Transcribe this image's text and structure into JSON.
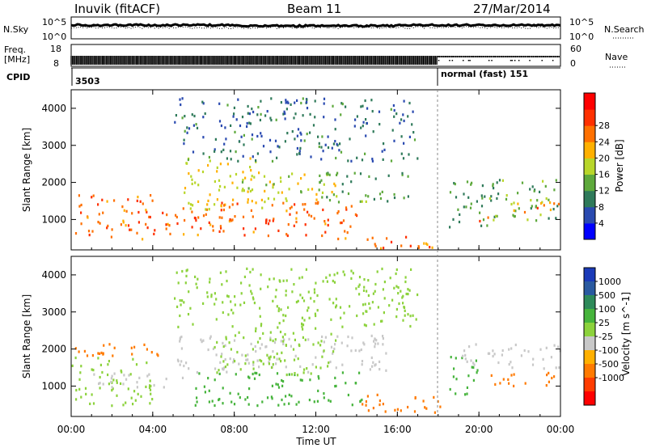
{
  "chart_data": {
    "type": "heatmap",
    "header": {
      "station": "Inuvik (fitACF)",
      "beam": "Beam 11",
      "date": "27/Mar/2014"
    },
    "nsky_panel": {
      "left_label": "N.Sky",
      "right_label": "N.Search",
      "left_ticks": [
        "10^5",
        "10^0"
      ],
      "right_ticks": [
        "10^5",
        "10^0"
      ]
    },
    "freq_panel": {
      "left_label_line1": "Freq.",
      "left_label_line2": "[MHz]",
      "left_ticks": [
        "18",
        "8"
      ],
      "right_label": "Nave",
      "right_ticks": [
        "60",
        "0"
      ]
    },
    "cpid": {
      "label": "CPID",
      "entries": [
        {
          "text": "3503",
          "start_hour": 0
        },
        {
          "text": "normal (fast) 151",
          "start_hour": 18
        }
      ]
    },
    "x_axis": {
      "label": "Time UT",
      "range_hours": [
        0,
        24
      ],
      "ticks": [
        {
          "hour": 0,
          "label": "00:00"
        },
        {
          "hour": 4,
          "label": "04:00"
        },
        {
          "hour": 8,
          "label": "08:00"
        },
        {
          "hour": 12,
          "label": "12:00"
        },
        {
          "hour": 16,
          "label": "16:00"
        },
        {
          "hour": 20,
          "label": "20:00"
        },
        {
          "hour": 24,
          "label": "00:00"
        }
      ]
    },
    "power_panel": {
      "ylabel": "Slant Range [km]",
      "yrange_km": [
        180,
        4500
      ],
      "yticks": [
        1000,
        2000,
        3000,
        4000
      ],
      "colorbar_label": "Power [dB]",
      "colorbar_ticks": [
        "4",
        "8",
        "12",
        "16",
        "20",
        "24",
        "28"
      ],
      "colorbar_colors": [
        "#0000ff",
        "#2a4ab0",
        "#2f7a5a",
        "#5ea93c",
        "#b8d62a",
        "#ffb000",
        "#ff7000",
        "#ff3000",
        "#ff0000"
      ]
    },
    "velocity_panel": {
      "ylabel": "Slant Range [km]",
      "yrange_km": [
        180,
        4500
      ],
      "yticks": [
        1000,
        2000,
        3000,
        4000
      ],
      "colorbar_label": "Velocity [m s^-1]",
      "colorbar_ticks": [
        "1000",
        "500",
        "100",
        "25",
        "-25",
        "-100",
        "-500",
        "-1000"
      ],
      "colorbar_colors": [
        "#1a3ab8",
        "#2a5aa0",
        "#2e8a5a",
        "#46b43c",
        "#8cd23c",
        "#c8c8c8",
        "#ffb000",
        "#ff7a00",
        "#ff3c00",
        "#ff0000"
      ]
    },
    "power_blobs": [
      {
        "t0": 0.0,
        "t1": 4.0,
        "r0": 500,
        "r1": 1700,
        "val": 26
      },
      {
        "t0": 4.0,
        "t1": 8.0,
        "r0": 600,
        "r1": 1400,
        "val": 27
      },
      {
        "t0": 5.5,
        "t1": 9.5,
        "r0": 1300,
        "r1": 2700,
        "val": 20
      },
      {
        "t0": 7.0,
        "t1": 14.0,
        "r0": 500,
        "r1": 1500,
        "val": 27
      },
      {
        "t0": 8.0,
        "t1": 13.0,
        "r0": 1500,
        "r1": 2300,
        "val": 18
      },
      {
        "t0": 12.0,
        "t1": 16.5,
        "r0": 1500,
        "r1": 2300,
        "val": 13
      },
      {
        "t0": 14.0,
        "t1": 18.0,
        "r0": 250,
        "r1": 650,
        "val": 26
      },
      {
        "t0": 18.5,
        "t1": 21.0,
        "r0": 800,
        "r1": 2100,
        "val": 12
      },
      {
        "t0": 19.5,
        "t1": 20.5,
        "r0": 900,
        "r1": 1100,
        "val": 27
      },
      {
        "t0": 20.5,
        "t1": 24.0,
        "r0": 1000,
        "r1": 2100,
        "val": 14
      },
      {
        "t0": 21.0,
        "t1": 24.0,
        "r0": 1200,
        "r1": 1500,
        "val": 26
      },
      {
        "t0": 5.0,
        "t1": 17.0,
        "r0": 2600,
        "r1": 4300,
        "val": 9
      }
    ],
    "velocity_blobs": [
      {
        "t0": 0.0,
        "t1": 4.0,
        "r0": 500,
        "r1": 1800,
        "val": 60
      },
      {
        "t0": 1.0,
        "t1": 6.0,
        "r0": 1000,
        "r1": 1400,
        "val": 0
      },
      {
        "t0": 5.0,
        "t1": 15.5,
        "r0": 1400,
        "r1": 2400,
        "val": 0
      },
      {
        "t0": 6.0,
        "t1": 14.5,
        "r0": 500,
        "r1": 1400,
        "val": 250
      },
      {
        "t0": 7.0,
        "t1": 13.0,
        "r0": 1300,
        "r1": 2600,
        "val": 60
      },
      {
        "t0": 14.0,
        "t1": 18.5,
        "r0": 300,
        "r1": 800,
        "val": -300
      },
      {
        "t0": 18.5,
        "t1": 20.0,
        "r0": 800,
        "r1": 1900,
        "val": 300
      },
      {
        "t0": 19.0,
        "t1": 24.0,
        "r0": 1500,
        "r1": 2200,
        "val": 0
      },
      {
        "t0": 20.5,
        "t1": 24.0,
        "r0": 1000,
        "r1": 1400,
        "val": -300
      },
      {
        "t0": 0.0,
        "t1": 5.0,
        "r0": 1800,
        "r1": 2200,
        "val": -200
      },
      {
        "t0": 5.0,
        "t1": 17.0,
        "r0": 2600,
        "r1": 4200,
        "val": 30
      }
    ]
  }
}
